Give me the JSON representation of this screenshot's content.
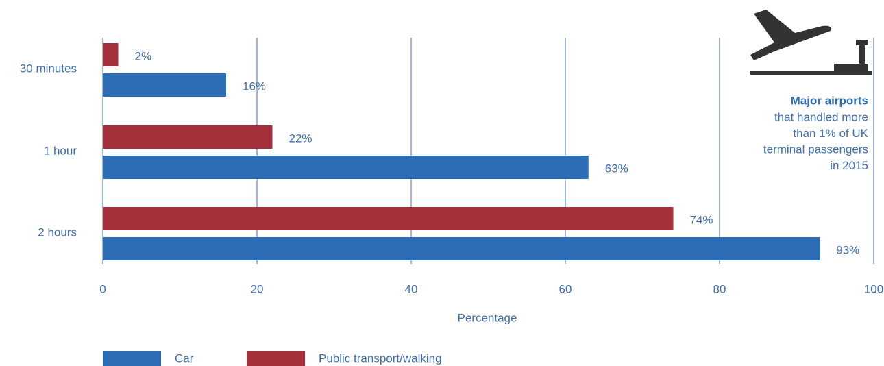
{
  "chart_data": {
    "type": "bar",
    "orientation": "horizontal",
    "categories": [
      "30 minutes",
      "1 hour",
      "2 hours"
    ],
    "series": [
      {
        "name": "Car",
        "color": "#2d6db5",
        "values": [
          16,
          63,
          93
        ],
        "value_labels": [
          "16%",
          "63%",
          "93%"
        ]
      },
      {
        "name": "Public transport/walking",
        "color": "#a3303a",
        "values": [
          2,
          22,
          74
        ],
        "value_labels": [
          "2%",
          "22%",
          "74%"
        ]
      }
    ],
    "xlim": [
      0,
      100
    ],
    "xticks": [
      0,
      20,
      40,
      60,
      80,
      100
    ],
    "grid": true,
    "xlabel": "Percentage",
    "annotation": {
      "title": "Major airports",
      "lines": [
        "that handled more",
        "than 1% of UK",
        "terminal passengers",
        "in 2015"
      ]
    }
  }
}
